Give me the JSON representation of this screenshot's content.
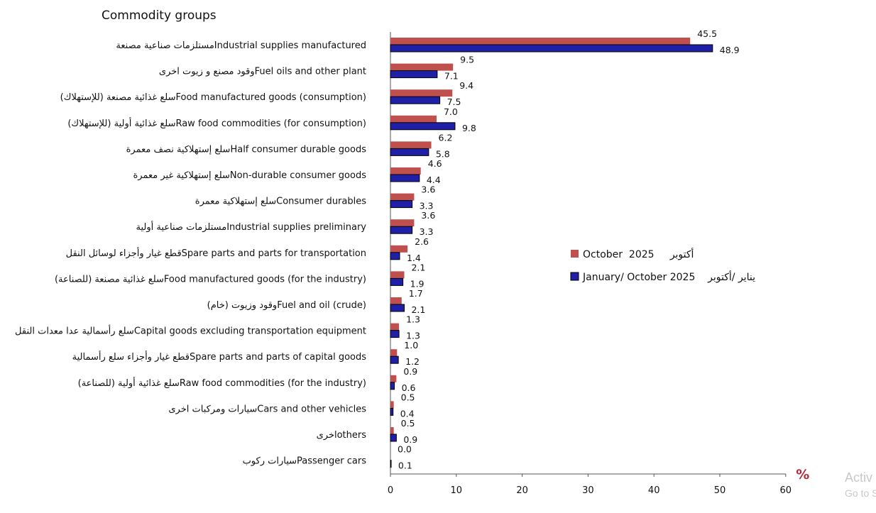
{
  "chart_data": {
    "type": "bar",
    "orientation": "horizontal",
    "title": "Commodity groups",
    "xlabel": "%",
    "xlim": [
      0,
      60
    ],
    "xticks": [
      0,
      10,
      20,
      30,
      40,
      50,
      60
    ],
    "grid": false,
    "legend_position": "right",
    "categories": [
      "مستلزمات صناعية مصنعةIndustrial supplies manufactured",
      "وقود مصنع و زيوت اخرىFuel oils and other plant",
      "سلع غذائية مصنعة (للإستهلاك)Food manufactured goods (consumption)",
      "سلع غذائية أولية (للإستهلاك)Raw food commodities (for consumption)",
      "سلع إستهلاكية نصف معمرةHalf consumer durable goods",
      "سلع إستهلاكية غير معمرةNon-durable consumer goods",
      "سلع إستهلاكية معمرةConsumer durables",
      "مستلزمات صناعية أوليةIndustrial supplies preliminary",
      "قطع غيار وأجزاء لوسائل النقلSpare parts and parts for transportation",
      "سلع غذائية مصنعة (للصناعة)Food manufactured goods (for the industry)",
      "وقود وزيوت (خام)Fuel and oil (crude)",
      "سلع رأسمالية عدا معدات النقلCapital goods excluding transportation equipment",
      "قطع غيار وأجزاء سلع رأسماليةSpare parts and parts of capital goods",
      "سلع غذائية أولية (للصناعة)Raw food commodities (for the industry)",
      "سيارات ومركبات اخرىCars and other vehicles",
      "اخرىothers",
      "سيارات ركوبPassenger cars"
    ],
    "series": [
      {
        "name": "October  2025     أكتوبر",
        "color": "#c0504d",
        "values": [
          45.5,
          9.5,
          9.4,
          7.0,
          6.2,
          4.6,
          3.6,
          3.6,
          2.6,
          2.1,
          1.7,
          1.3,
          1.0,
          0.9,
          0.5,
          0.5,
          0.0
        ],
        "labels": [
          "45.5",
          "9.5",
          "9.4",
          "7.0",
          "6.2",
          "4.6",
          "3.6",
          "3.6",
          "2.6",
          "2.1",
          "1.7",
          "1.3",
          "1.0",
          "0.9",
          "0.5",
          "0.5",
          "0.0"
        ]
      },
      {
        "name": "January/ October 2025    يناير /أكتوبر",
        "color": "#1f1fa8",
        "values": [
          48.9,
          7.1,
          7.5,
          9.8,
          5.8,
          4.4,
          3.3,
          3.3,
          1.4,
          1.9,
          2.1,
          1.3,
          1.2,
          0.6,
          0.4,
          0.9,
          0.1
        ],
        "labels": [
          "48.9",
          "7.1",
          "7.5",
          "9.8",
          "5.8",
          "4.4",
          "3.3",
          "3.3",
          "1.4",
          "1.9",
          "2.1",
          "1.3",
          "1.2",
          "0.6",
          "0.4",
          "0.9",
          "0.1"
        ]
      }
    ]
  },
  "watermark": {
    "line1": "Activ",
    "line2": "Go to S"
  }
}
